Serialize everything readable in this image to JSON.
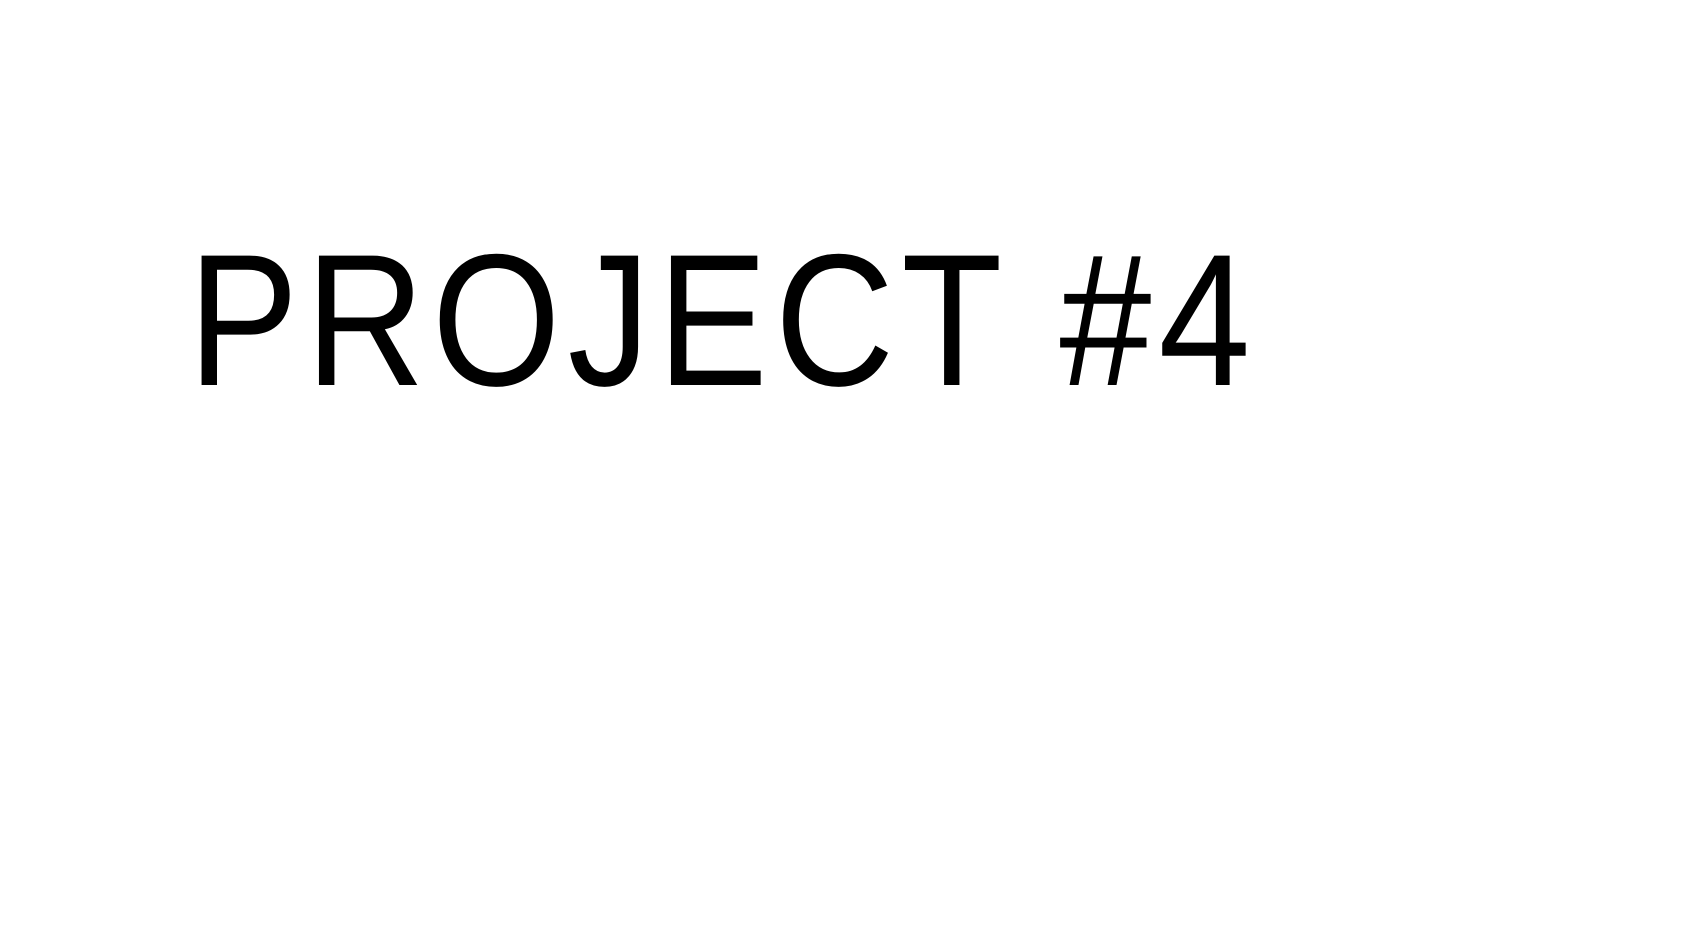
{
  "slide": {
    "title": "PROJECT #4",
    "background_color": "#ffffff",
    "text_color": "#000000"
  }
}
